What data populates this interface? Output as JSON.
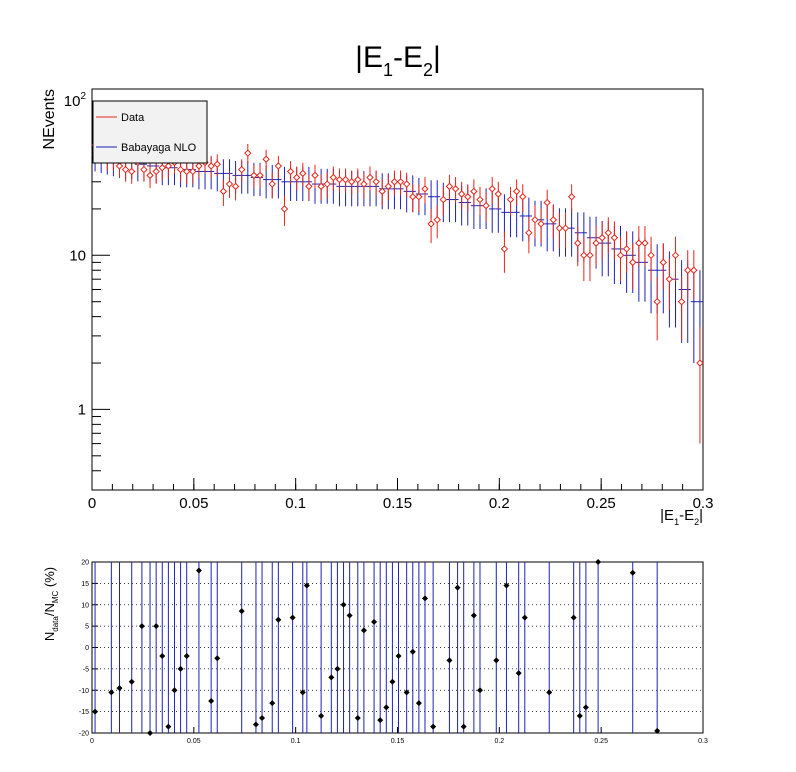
{
  "chart_data": [
    {
      "type": "scatter",
      "title": "|E1-E2|",
      "title_parts": {
        "a": "|E",
        "a_sub": "1",
        "b": "-E",
        "b_sub": "2",
        "c": "|"
      },
      "xlabel": "|E1-E2|",
      "xlabel_parts": {
        "a": "|E",
        "a_sub": "1",
        "b": "-E",
        "b_sub": "2",
        "c": "|"
      },
      "ylabel": "NEvents",
      "log_y": true,
      "xlim": [
        0,
        0.3
      ],
      "ylim": [
        0.3,
        120
      ],
      "x_ticks": [
        {
          "v": 0,
          "label": "0"
        },
        {
          "v": 0.05,
          "label": "0.05"
        },
        {
          "v": 0.1,
          "label": "0.1"
        },
        {
          "v": 0.15,
          "label": "0.15"
        },
        {
          "v": 0.2,
          "label": "0.2"
        },
        {
          "v": 0.25,
          "label": "0.25"
        },
        {
          "v": 0.3,
          "label": "0.3"
        }
      ],
      "y_ticks": [
        {
          "v": 1,
          "label": "1"
        },
        {
          "v": 10,
          "label": "10"
        },
        {
          "v": 100,
          "label": "10",
          "sup": "2"
        }
      ],
      "legend": {
        "position": "top-left",
        "entries": [
          "Data",
          "Babayaga NLO"
        ]
      },
      "colors": {
        "data": "#e8261a",
        "mc": "#1c22b4"
      },
      "series": [
        {
          "name": "Data",
          "x": [
            0.0015,
            0.0045,
            0.0075,
            0.0105,
            0.0135,
            0.0165,
            0.0195,
            0.0225,
            0.0255,
            0.0285,
            0.0315,
            0.0345,
            0.0375,
            0.0405,
            0.0435,
            0.0465,
            0.0495,
            0.0525,
            0.0555,
            0.0585,
            0.0615,
            0.0645,
            0.0675,
            0.0705,
            0.0735,
            0.0765,
            0.0795,
            0.0825,
            0.0855,
            0.0885,
            0.0915,
            0.0945,
            0.0975,
            0.1005,
            0.1035,
            0.1065,
            0.1095,
            0.1125,
            0.1155,
            0.1185,
            0.1215,
            0.1245,
            0.1275,
            0.1305,
            0.1335,
            0.1365,
            0.1395,
            0.1425,
            0.1455,
            0.1485,
            0.1515,
            0.1545,
            0.1575,
            0.1605,
            0.1635,
            0.1665,
            0.1695,
            0.1725,
            0.1755,
            0.1785,
            0.1815,
            0.1845,
            0.1875,
            0.1905,
            0.1935,
            0.1965,
            0.1995,
            0.2025,
            0.2055,
            0.2085,
            0.2115,
            0.2145,
            0.2175,
            0.2205,
            0.2235,
            0.2265,
            0.2295,
            0.2325,
            0.2355,
            0.2385,
            0.2415,
            0.2445,
            0.2475,
            0.2505,
            0.2535,
            0.2565,
            0.2595,
            0.2625,
            0.2655,
            0.2685,
            0.2715,
            0.2745,
            0.2775,
            0.2805,
            0.2835,
            0.2865,
            0.2895,
            0.2925,
            0.2955,
            0.2985
          ],
          "y": [
            52,
            48,
            42,
            42,
            38,
            36,
            35,
            40,
            36,
            33,
            35,
            37,
            38,
            40,
            36,
            35,
            35,
            38,
            40,
            38,
            39,
            26,
            29,
            28,
            36,
            46,
            33,
            33,
            42,
            29,
            38,
            20,
            35,
            32,
            34,
            28,
            33,
            28,
            29,
            32,
            31,
            31,
            30,
            31,
            29,
            32,
            30,
            26,
            28,
            30,
            30,
            29,
            24,
            24,
            27,
            16,
            17,
            23,
            28,
            27,
            25,
            24,
            26,
            23,
            21,
            27,
            25,
            11,
            23,
            26,
            24,
            14,
            17,
            16,
            22,
            17,
            15,
            15,
            24,
            12,
            10,
            10,
            12,
            13,
            14,
            13,
            10,
            11,
            9,
            12,
            12,
            10,
            5,
            9,
            7,
            10,
            5,
            8,
            8,
            2
          ],
          "err": [
            7,
            7,
            6.5,
            6.5,
            6.2,
            6,
            5.9,
            6.3,
            6,
            5.7,
            5.9,
            6.1,
            6.2,
            6.3,
            6,
            5.9,
            5.9,
            6.2,
            6.3,
            6.2,
            6.2,
            5.1,
            5.4,
            5.3,
            6,
            6.8,
            5.7,
            5.7,
            6.5,
            5.4,
            6.2,
            4.5,
            5.9,
            5.7,
            5.8,
            5.3,
            5.7,
            5.3,
            5.4,
            5.7,
            5.6,
            5.6,
            5.5,
            5.6,
            5.4,
            5.7,
            5.5,
            5.1,
            5.3,
            5.5,
            5.5,
            5.4,
            4.9,
            4.9,
            5.2,
            4,
            4.1,
            4.8,
            5.3,
            5.2,
            5,
            4.9,
            5.1,
            4.8,
            4.6,
            5.2,
            5,
            3.3,
            4.8,
            5.1,
            4.9,
            3.7,
            4.1,
            4,
            4.7,
            4.1,
            3.9,
            3.9,
            4.9,
            3.5,
            3.2,
            3.2,
            3.5,
            3.6,
            3.7,
            3.6,
            3.2,
            3.3,
            3,
            3.5,
            3.5,
            3.2,
            2.2,
            3,
            2.6,
            3.2,
            2.2,
            2.8,
            2.8,
            1.4
          ]
        },
        {
          "name": "Babayaga NLO",
          "x": [
            0.0015,
            0.0045,
            0.0075,
            0.0105,
            0.0135,
            0.0165,
            0.0195,
            0.0225,
            0.0255,
            0.0285,
            0.0315,
            0.0345,
            0.0375,
            0.0405,
            0.0435,
            0.0465,
            0.0495,
            0.0525,
            0.0555,
            0.0585,
            0.0615,
            0.0645,
            0.0675,
            0.0705,
            0.0735,
            0.0765,
            0.0795,
            0.0825,
            0.0855,
            0.0885,
            0.0915,
            0.0945,
            0.0975,
            0.1005,
            0.1035,
            0.1065,
            0.1095,
            0.1125,
            0.1155,
            0.1185,
            0.1215,
            0.1245,
            0.1275,
            0.1305,
            0.1335,
            0.1365,
            0.1395,
            0.1425,
            0.1455,
            0.1485,
            0.1515,
            0.1545,
            0.1575,
            0.1605,
            0.1635,
            0.1665,
            0.1695,
            0.1725,
            0.1755,
            0.1785,
            0.1815,
            0.1845,
            0.1875,
            0.1905,
            0.1935,
            0.1965,
            0.1995,
            0.2025,
            0.2055,
            0.2085,
            0.2115,
            0.2145,
            0.2175,
            0.2205,
            0.2235,
            0.2265,
            0.2295,
            0.2325,
            0.2355,
            0.2385,
            0.2415,
            0.2445,
            0.2475,
            0.2505,
            0.2535,
            0.2565,
            0.2595,
            0.2625,
            0.2655,
            0.2685,
            0.2715,
            0.2745,
            0.2775,
            0.2805,
            0.2835,
            0.2865,
            0.2895,
            0.2925,
            0.2955,
            0.2985
          ],
          "y": [
            45,
            44,
            43,
            42,
            41,
            40,
            40,
            39,
            39,
            38,
            38,
            37,
            37,
            37,
            36,
            36,
            36,
            35,
            35,
            35,
            34,
            34,
            34,
            33,
            33,
            33,
            32,
            32,
            31,
            31,
            31,
            30,
            30,
            30,
            30,
            30,
            29,
            29,
            29,
            29,
            28,
            28,
            28,
            28,
            28,
            28,
            28,
            27,
            27,
            27,
            27,
            26,
            26,
            25,
            25,
            24,
            24,
            23,
            23,
            23,
            22,
            22,
            21,
            21,
            21,
            20,
            20,
            19,
            19,
            19,
            18,
            18,
            17,
            17,
            16,
            16,
            15,
            15,
            15,
            14,
            14,
            13,
            13,
            12,
            12,
            11,
            11,
            10,
            10,
            9,
            9,
            8,
            8,
            8,
            7,
            7,
            6,
            6,
            5,
            5
          ],
          "err": [
            10,
            9.8,
            9.6,
            9.4,
            9.2,
            9,
            9,
            8.8,
            8.8,
            8.6,
            8.6,
            8.5,
            8.5,
            8.5,
            8.4,
            8.4,
            8.4,
            8.2,
            8.2,
            8.2,
            8,
            8,
            8,
            7.9,
            7.9,
            7.9,
            7.8,
            7.8,
            7.6,
            7.6,
            7.6,
            7.5,
            7.5,
            7.5,
            7.5,
            7.5,
            7.4,
            7.4,
            7.4,
            7.4,
            7.2,
            7.2,
            7.2,
            7.2,
            7.2,
            7.2,
            7.2,
            7.1,
            7.1,
            7.1,
            7.1,
            7,
            7,
            6.8,
            6.8,
            6.7,
            6.7,
            6.6,
            6.6,
            6.6,
            6.4,
            6.4,
            6.2,
            6.2,
            6.2,
            6,
            6,
            5.9,
            5.9,
            5.9,
            5.7,
            5.7,
            5.6,
            5.6,
            5.4,
            5.4,
            5.2,
            5.2,
            5.2,
            5,
            5,
            4.8,
            4.8,
            4.7,
            4.7,
            4.5,
            4.5,
            4.3,
            4.3,
            4,
            4,
            3.8,
            3.8,
            3.8,
            3.6,
            3.6,
            3.3,
            3.3,
            3,
            3
          ]
        }
      ]
    },
    {
      "type": "scatter",
      "ylabel": "Ndata/NMC (%)",
      "ylabel_parts": {
        "a": "N",
        "a_sub": "data",
        "b": "/N",
        "b_sub": "MC",
        "c": " (%)"
      },
      "xlim": [
        0,
        0.3
      ],
      "ylim": [
        -20,
        20
      ],
      "grid": "horizontal dotted",
      "x_ticks": [
        {
          "v": 0,
          "label": "0"
        },
        {
          "v": 0.05,
          "label": "0.05"
        },
        {
          "v": 0.1,
          "label": "0.1"
        },
        {
          "v": 0.15,
          "label": "0.15"
        },
        {
          "v": 0.2,
          "label": "0.2"
        },
        {
          "v": 0.25,
          "label": "0.25"
        },
        {
          "v": 0.3,
          "label": "0.3"
        }
      ],
      "y_ticks": [
        {
          "v": -20,
          "label": "-20"
        },
        {
          "v": -15,
          "label": "-15"
        },
        {
          "v": -10,
          "label": "-10"
        },
        {
          "v": -5,
          "label": "-5"
        },
        {
          "v": 0,
          "label": "0"
        },
        {
          "v": 5,
          "label": "5"
        },
        {
          "v": 10,
          "label": "10"
        },
        {
          "v": 15,
          "label": "15"
        },
        {
          "v": 20,
          "label": "20"
        }
      ],
      "series": [
        {
          "name": "",
          "x": [
            0.0015,
            0.0095,
            0.0135,
            0.0195,
            0.0245,
            0.0285,
            0.0315,
            0.0345,
            0.0375,
            0.0405,
            0.0435,
            0.0465,
            0.0525,
            0.0585,
            0.0615,
            0.0735,
            0.0805,
            0.0835,
            0.0885,
            0.0915,
            0.0985,
            0.1035,
            0.1055,
            0.1125,
            0.1175,
            0.1205,
            0.1235,
            0.1265,
            0.1305,
            0.1335,
            0.1385,
            0.1415,
            0.1445,
            0.1475,
            0.1505,
            0.1545,
            0.1575,
            0.1605,
            0.1635,
            0.1675,
            0.1755,
            0.1795,
            0.1825,
            0.1875,
            0.1905,
            0.1985,
            0.2035,
            0.2095,
            0.2125,
            0.2245,
            0.2365,
            0.2395,
            0.2425,
            0.2485,
            0.2655,
            0.2775
          ],
          "y": [
            -15,
            -10.5,
            -9.5,
            -8,
            5,
            -20,
            5,
            -2,
            -18.5,
            -10,
            -5,
            -2,
            18,
            -12.5,
            -2.5,
            8.5,
            -18,
            -16.5,
            -13,
            6.5,
            7,
            -10.5,
            14.5,
            -16,
            -7,
            -5,
            10,
            7.5,
            -16.5,
            4,
            6,
            -17,
            -14,
            -8,
            -2,
            -10.5,
            -1,
            -13,
            11.5,
            -18.5,
            -3,
            14,
            -18.5,
            7.5,
            -10,
            -3,
            14.5,
            -6,
            7,
            -10.5,
            7,
            -16,
            -14,
            20,
            17.5,
            -19.5
          ]
        }
      ]
    }
  ]
}
